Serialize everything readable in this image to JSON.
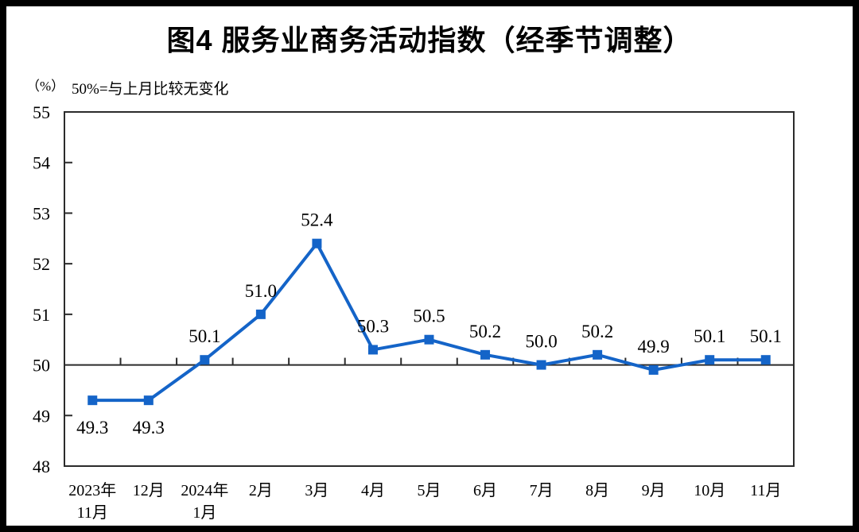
{
  "title": "图4 服务业商务活动指数（经季节调整）",
  "unit_label": "（%）",
  "subtitle": "50%=与上月比较无变化",
  "chart_data": {
    "type": "line",
    "title": "图4 服务业商务活动指数（经季节调整）",
    "subtitle": "50%=与上月比较无变化",
    "ylabel": "（%）",
    "categories": [
      "2023年\n11月",
      "12月",
      "2024年\n1月",
      "2月",
      "3月",
      "4月",
      "5月",
      "6月",
      "7月",
      "8月",
      "9月",
      "10月",
      "11月"
    ],
    "values": [
      49.3,
      49.3,
      50.1,
      51.0,
      52.4,
      50.3,
      50.5,
      50.2,
      50.0,
      50.2,
      49.9,
      50.1,
      50.1
    ],
    "data_labels": [
      "49.3",
      "49.3",
      "50.1",
      "51.0",
      "52.4",
      "50.3",
      "50.5",
      "50.2",
      "50.0",
      "50.2",
      "49.9",
      "50.1",
      "50.1"
    ],
    "label_side": [
      "below",
      "below",
      "above",
      "above",
      "above",
      "above",
      "above",
      "above",
      "above",
      "above",
      "above",
      "above",
      "above"
    ],
    "ylim": [
      48,
      55
    ],
    "yticks": [
      48,
      49,
      50,
      51,
      52,
      53,
      54,
      55
    ],
    "reference_line": 50,
    "grid": false,
    "legend": "none",
    "line_color": "#1464C8",
    "marker": "square",
    "axis_color": "#2b2b2b"
  }
}
